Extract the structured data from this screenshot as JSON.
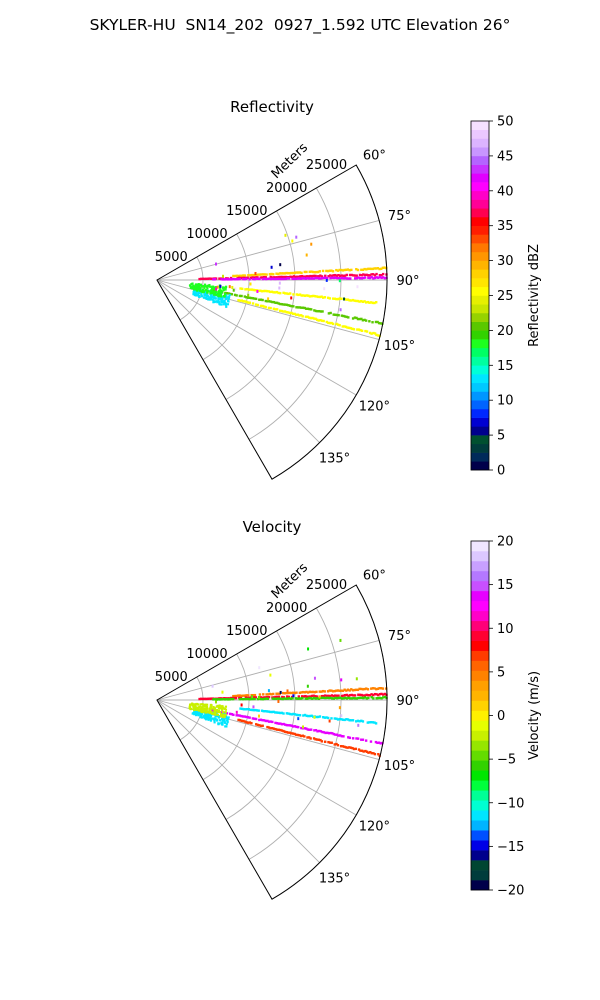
{
  "figure_title": "SKYLER-HU  SN14_202  0927_1.592 UTC Elevation 26°",
  "chart_data": [
    {
      "type": "polar-sector",
      "title": "Reflectivity",
      "range_label": "Meters",
      "range_ticks": [
        5000,
        10000,
        15000,
        20000,
        25000
      ],
      "range_max": 25000,
      "azimuth_range": [
        60,
        150
      ],
      "azimuth_ticks": [
        "60°",
        "75°",
        "90°",
        "105°",
        "120°",
        "135°"
      ],
      "grid": true,
      "colorbar": {
        "label": "Reflectivity dBZ",
        "min": 0,
        "max": 50,
        "ticks": [
          0,
          5,
          10,
          15,
          20,
          25,
          30,
          35,
          40,
          45,
          50
        ],
        "colors": [
          "#00004a",
          "#002a5a",
          "#003c3c",
          "#005030",
          "#00008c",
          "#0000d2",
          "#0028ff",
          "#0064ff",
          "#0096ff",
          "#00c8ff",
          "#00e6ff",
          "#00ffd8",
          "#00ffa0",
          "#00ff64",
          "#1eff1e",
          "#32d200",
          "#5ac800",
          "#96d200",
          "#c8e600",
          "#e6f000",
          "#ffff00",
          "#ffe600",
          "#ffd200",
          "#ffb400",
          "#ff9600",
          "#ff7800",
          "#ff4b00",
          "#ff1e00",
          "#ff0000",
          "#ff0050",
          "#ff0096",
          "#ff00c8",
          "#ff00ff",
          "#e100ff",
          "#c832ff",
          "#b464ff",
          "#c896ff",
          "#dcb4ff",
          "#ebc8ff",
          "#f5e1ff"
        ]
      },
      "features": [
        {
          "azimuth": 87,
          "r_start": 8000,
          "r_end": 25000,
          "value": 28
        },
        {
          "azimuth": 88.6,
          "r_start": 4500,
          "r_end": 25000,
          "value": 37
        },
        {
          "azimuth": 89.4,
          "r_start": 6000,
          "r_end": 25000,
          "value": 42
        },
        {
          "azimuth": 96,
          "r_start": 9000,
          "r_end": 24000,
          "value": 25
        },
        {
          "azimuth": 101,
          "r_start": 6000,
          "r_end": 25000,
          "value": 20
        },
        {
          "azimuth": 104,
          "r_start": 9000,
          "r_end": 25000,
          "value": 25
        },
        {
          "cluster_azimuth": 106,
          "cluster_range": 6000,
          "value": 13
        },
        {
          "cluster_azimuth": 99,
          "cluster_range": 5500,
          "value": 18
        }
      ]
    },
    {
      "type": "polar-sector",
      "title": "Velocity",
      "range_label": "Meters",
      "range_ticks": [
        5000,
        10000,
        15000,
        20000,
        25000
      ],
      "range_max": 25000,
      "azimuth_range": [
        60,
        150
      ],
      "azimuth_ticks": [
        "60°",
        "75°",
        "90°",
        "105°",
        "120°",
        "135°"
      ],
      "grid": true,
      "colorbar": {
        "label": "Velocity (m/s)",
        "min": -20,
        "max": 20,
        "ticks": [
          -20,
          -15,
          -10,
          -5,
          0,
          5,
          10,
          15,
          20
        ],
        "colors": [
          "#00004a",
          "#003c3c",
          "#004632",
          "#00008c",
          "#0000e6",
          "#0050ff",
          "#00b4ff",
          "#00e6ff",
          "#00ffd2",
          "#00ff96",
          "#00ff3c",
          "#00e600",
          "#32d200",
          "#64dc00",
          "#96e600",
          "#c8f000",
          "#e6ff00",
          "#fff000",
          "#ffd200",
          "#ffb400",
          "#ffa000",
          "#ff8200",
          "#ff6400",
          "#ff3c00",
          "#ff0000",
          "#ff0032",
          "#ff0078",
          "#ff00c8",
          "#ff00ff",
          "#e600ff",
          "#c850ff",
          "#b478ff",
          "#c8a0ff",
          "#dcc8ff",
          "#f0e6ff"
        ]
      },
      "features": [
        {
          "azimuth": 87,
          "r_start": 8000,
          "r_end": 25000,
          "value": 4
        },
        {
          "azimuth": 88.6,
          "r_start": 4500,
          "r_end": 25000,
          "value": 9
        },
        {
          "azimuth": 89.4,
          "r_start": 6000,
          "r_end": 25000,
          "value": -6
        },
        {
          "azimuth": 96,
          "r_start": 9000,
          "r_end": 24000,
          "value": -11
        },
        {
          "azimuth": 101,
          "r_start": 6000,
          "r_end": 25000,
          "value": 14
        },
        {
          "azimuth": 104,
          "r_start": 9000,
          "r_end": 25000,
          "value": 7
        },
        {
          "cluster_azimuth": 106,
          "cluster_range": 6000,
          "value": -12
        },
        {
          "cluster_azimuth": 99,
          "cluster_range": 5500,
          "value": -2
        }
      ]
    }
  ]
}
